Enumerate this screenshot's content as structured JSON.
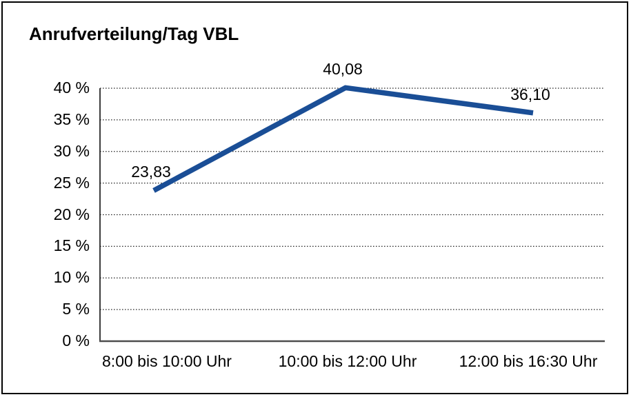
{
  "chart": {
    "title": "Anrufverteilung/Tag VBL"
  },
  "chart_data": {
    "type": "line",
    "title": "Anrufverteilung/Tag VBL",
    "categories": [
      "8:00 bis 10:00 Uhr",
      "10:00 bis 12:00 Uhr",
      "12:00 bis 16:30 Uhr"
    ],
    "values": [
      23.83,
      40.08,
      36.1
    ],
    "value_labels": [
      "23,83",
      "40,08",
      "36,10"
    ],
    "xlabel": "",
    "ylabel": "",
    "ylim": [
      0,
      40
    ],
    "y_ticks": [
      0,
      5,
      10,
      15,
      20,
      25,
      30,
      35,
      40
    ],
    "y_tick_labels": [
      "0 %",
      "5 %",
      "10 %",
      "15 %",
      "20 %",
      "25 %",
      "30 %",
      "35 %",
      "40 %"
    ],
    "grid": "horizontal-dotted",
    "legend": "none"
  },
  "colors": {
    "line": "#1A4E96",
    "grid": "#2b2b2b",
    "y_axis": "#1a1a1a",
    "x_axis": "#4d4d4d",
    "border": "#000000",
    "text": "#000000",
    "background": "#ffffff"
  }
}
